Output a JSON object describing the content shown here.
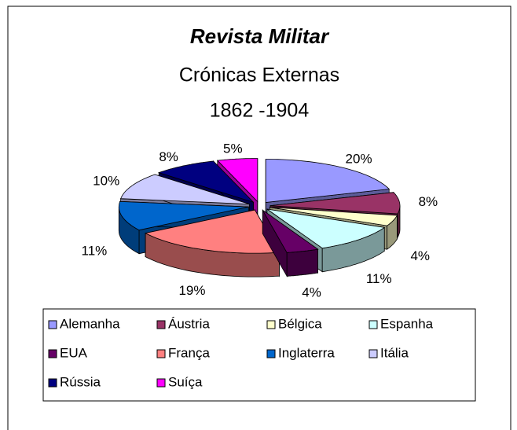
{
  "chart_data": {
    "type": "pie",
    "title": "Revista Militar",
    "subtitle": [
      "Crónicas Externas",
      "1862 -1904"
    ],
    "categories": [
      "Alemanha",
      "Áustria",
      "Bélgica",
      "Espanha",
      "EUA",
      "França",
      "Inglaterra",
      "Itália",
      "Rússia",
      "Suíça"
    ],
    "values": [
      20,
      8,
      4,
      11,
      4,
      19,
      11,
      10,
      8,
      5
    ],
    "value_labels": [
      "20%",
      "8%",
      "4%",
      "11%",
      "4%",
      "19%",
      "11%",
      "10%",
      "8%",
      "5%"
    ],
    "colors": [
      "#9999ff",
      "#993366",
      "#ffffcc",
      "#ccffff",
      "#660066",
      "#ff8080",
      "#0066cc",
      "#ccccff",
      "#000080",
      "#ff00ff"
    ],
    "legend": "bottom"
  }
}
